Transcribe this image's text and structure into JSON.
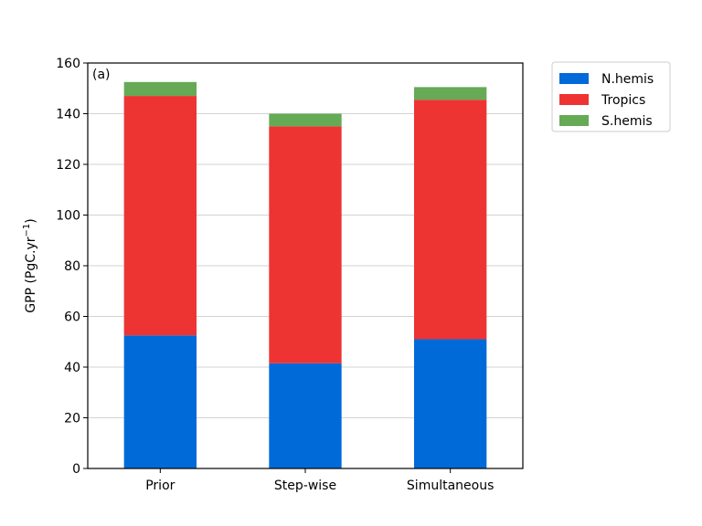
{
  "chart_data": {
    "type": "bar",
    "stacked": true,
    "panel_label": "(a)",
    "categories": [
      "Prior",
      "Step-wise",
      "Simultaneous"
    ],
    "series": [
      {
        "name": "N.hemis",
        "color": "#006ad9",
        "values": [
          52.5,
          41.5,
          51
        ]
      },
      {
        "name": "Tropics",
        "color": "#ee3333",
        "values": [
          94.5,
          93.5,
          94.5
        ]
      },
      {
        "name": "S.hemis",
        "color": "#66aa55",
        "values": [
          5.5,
          5,
          5
        ]
      }
    ],
    "title": "",
    "xlabel": "",
    "ylabel": "GPP (PgC.yr",
    "ylabel_superscript": "−1",
    "ylabel_suffix": ")",
    "ylim": [
      0,
      160
    ],
    "yticks": [
      "0",
      "20",
      "40",
      "60",
      "80",
      "100",
      "120",
      "140",
      "160"
    ],
    "grid": "horizontal",
    "legend_placement": "outside-top-right"
  }
}
